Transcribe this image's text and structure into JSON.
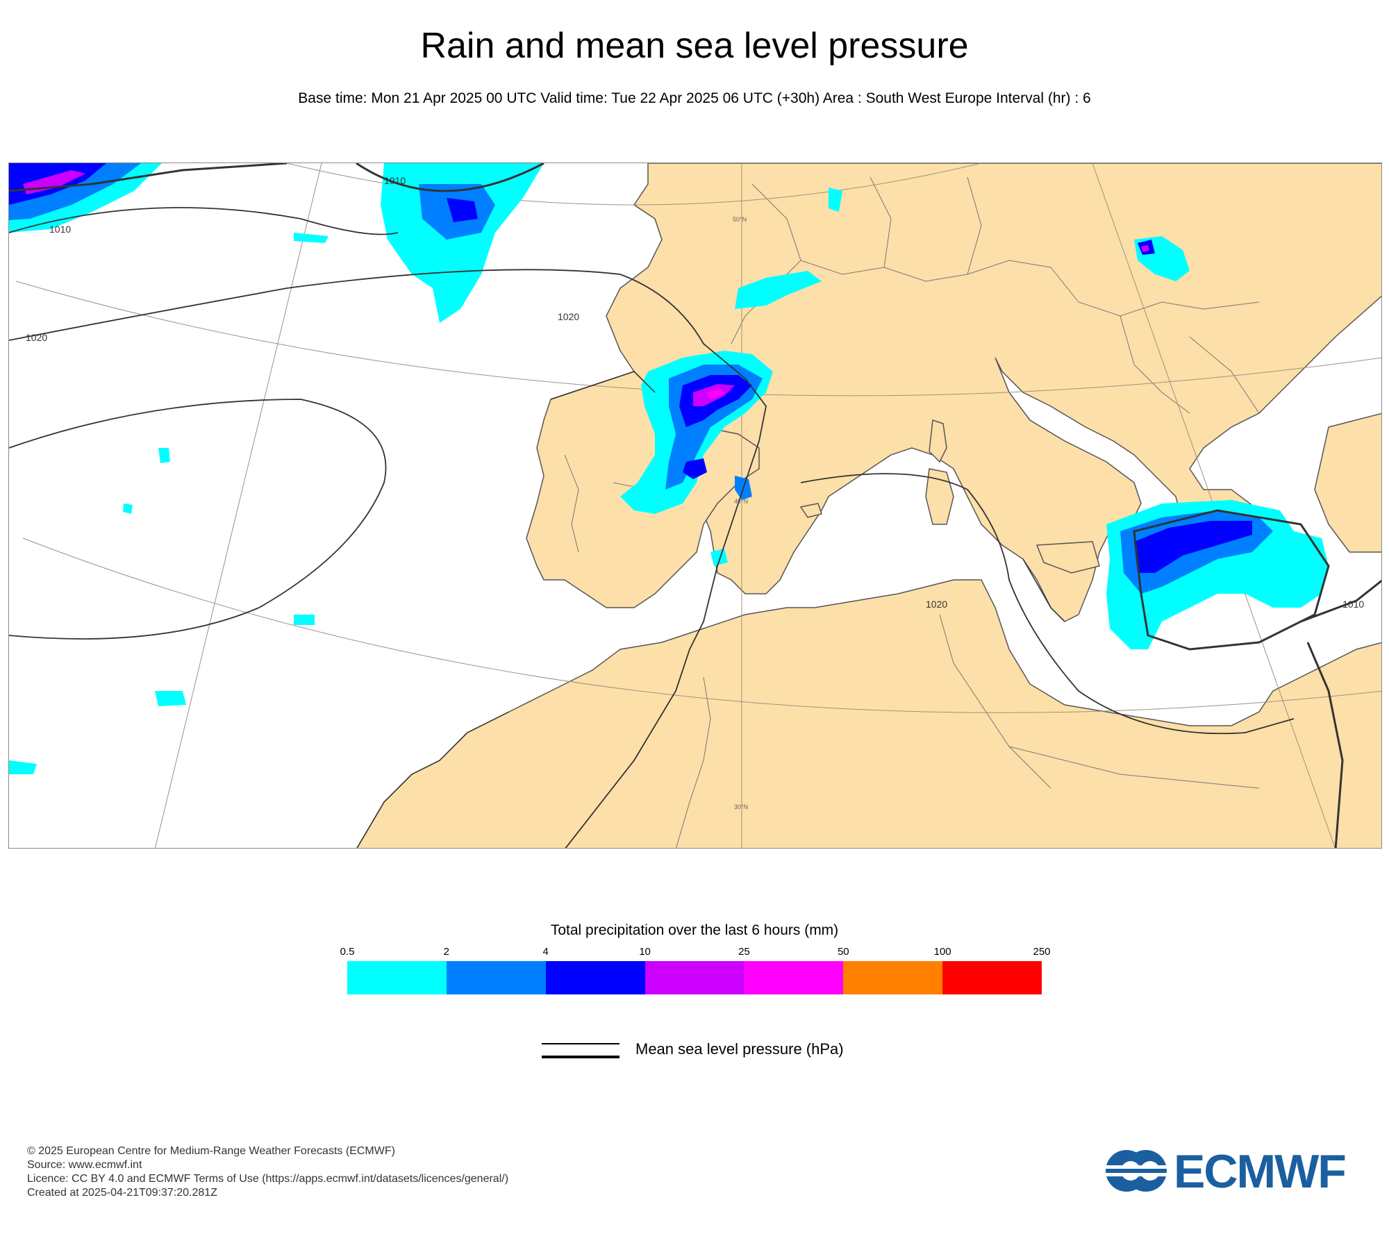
{
  "title": "Rain and mean sea level pressure",
  "subtitle": "Base time: Mon 21 Apr 2025 00 UTC Valid time: Tue 22 Apr 2025 06 UTC (+30h) Area : South West Europe Interval (hr) : 6",
  "map": {
    "land_color": "#fddfa9",
    "sea_color": "#ffffff",
    "graticule_labels": [
      "50°N",
      "40°N",
      "30°N"
    ],
    "isobar_labels": [
      "1010",
      "1010",
      "1020",
      "1020",
      "1020",
      "1010"
    ]
  },
  "legend": {
    "title": "Total precipitation over the last 6 hours (mm)",
    "ticks": [
      "0.5",
      "2",
      "4",
      "10",
      "25",
      "50",
      "100",
      "250"
    ],
    "colors": [
      "#00ffff",
      "#0080ff",
      "#0000ff",
      "#cc00ff",
      "#ff00ff",
      "#ff8000",
      "#ff0000"
    ],
    "pressure_label": "Mean sea level pressure (hPa)"
  },
  "credits": [
    "© 2025 European Centre for Medium-Range Weather Forecasts (ECMWF)",
    "Source: www.ecmwf.int",
    "Licence: CC BY 4.0 and ECMWF Terms of Use (https://apps.ecmwf.int/datasets/licences/general/)",
    "Created at 2025-04-21T09:37:20.281Z"
  ],
  "logo": {
    "text": "ECMWF",
    "color": "#1a5fa0"
  }
}
